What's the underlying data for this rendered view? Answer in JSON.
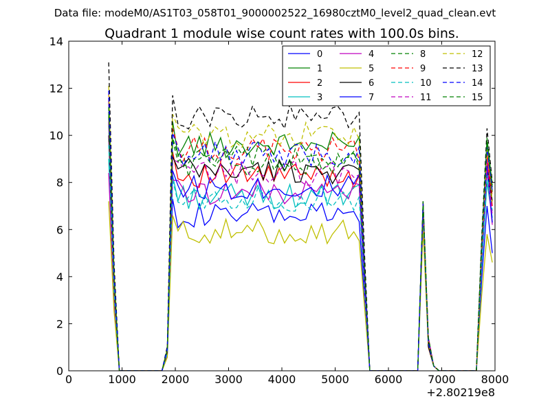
{
  "suptitle": "Data file: modeM0/AS1T03_058T01_9000002522_16980cztM0_level2_quad_clean.evt",
  "chart_data": {
    "type": "line",
    "title": "Quadrant 1 module wise count rates with 100.0s bins.",
    "xlabel": "",
    "ylabel": "",
    "x_offset_label": "+2.80219e8",
    "xlim": [
      0,
      8000
    ],
    "ylim": [
      0,
      14
    ],
    "xticks": [
      0,
      1000,
      2000,
      3000,
      4000,
      5000,
      6000,
      7000,
      8000
    ],
    "yticks": [
      0,
      2,
      4,
      6,
      8,
      10,
      12,
      14
    ],
    "grid": false,
    "legend_placement": "top-right",
    "legend_columns": 4,
    "segments": [
      {
        "x": [
          750,
          850,
          950,
          1050,
          1150,
          1250,
          1350,
          1450,
          1550,
          1650,
          1750,
          1850
        ]
      },
      {
        "x": [
          1850,
          1950,
          2050,
          2150,
          2250,
          2350,
          2450,
          2550,
          2650,
          2750,
          2850,
          2950,
          3050,
          3150,
          3250,
          3350,
          3450,
          3550,
          3650,
          3750,
          3850,
          3950,
          4050,
          4150,
          4250,
          4350,
          4450,
          4550,
          4650,
          4750,
          4850,
          4950,
          5050,
          5150,
          5250,
          5350,
          5450,
          5550,
          5650,
          5750,
          5850,
          5950,
          6050,
          6150,
          6250,
          6350,
          6450,
          6550,
          6650,
          6750,
          6850,
          6950,
          7050,
          7150,
          7250,
          7350,
          7450,
          7550,
          7650,
          7750,
          7850,
          7950
        ]
      }
    ],
    "series": [
      {
        "name": "0",
        "color": "#0000ff",
        "dash": "solid",
        "base": 6.6,
        "peak1": 10.5,
        "end1": 6.8,
        "peak2": 6.8,
        "peak3": 7.0,
        "end3": 5.0
      },
      {
        "name": "1",
        "color": "#008000",
        "dash": "solid",
        "base": 9.6,
        "peak1": 11.0,
        "end1": 10.1,
        "peak2": 7.0,
        "peak3": 9.7,
        "end3": 7.6
      },
      {
        "name": "2",
        "color": "#ff0000",
        "dash": "solid",
        "base": 8.3,
        "peak1": 11.5,
        "end1": 8.8,
        "peak2": 7.0,
        "peak3": 9.0,
        "end3": 7.0
      },
      {
        "name": "3",
        "color": "#00bfbf",
        "dash": "solid",
        "base": 7.4,
        "peak1": 9.0,
        "end1": 7.8,
        "peak2": 6.5,
        "peak3": 8.0,
        "end3": 6.5
      },
      {
        "name": "4",
        "color": "#bf00bf",
        "dash": "solid",
        "base": 7.6,
        "peak1": 8.4,
        "end1": 7.6,
        "peak2": 6.6,
        "peak3": 8.5,
        "end3": 6.2
      },
      {
        "name": "5",
        "color": "#bfbf00",
        "dash": "solid",
        "base": 5.9,
        "peak1": 7.2,
        "end1": 6.1,
        "peak2": 6.0,
        "peak3": 5.8,
        "end3": 4.6
      },
      {
        "name": "6",
        "color": "#000000",
        "dash": "solid",
        "base": 8.5,
        "peak1": 10.0,
        "end1": 8.6,
        "peak2": 7.1,
        "peak3": 8.7,
        "end3": 7.2
      },
      {
        "name": "7",
        "color": "#0000ff",
        "dash": "solid",
        "base": 7.8,
        "peak1": 11.6,
        "end1": 8.0,
        "peak2": 6.9,
        "peak3": 8.8,
        "end3": 6.3
      },
      {
        "name": "8",
        "color": "#008000",
        "dash": "dashed",
        "base": 8.8,
        "peak1": 10.8,
        "end1": 9.3,
        "peak2": 7.2,
        "peak3": 9.9,
        "end3": 7.8
      },
      {
        "name": "9",
        "color": "#ff0000",
        "dash": "dashed",
        "base": 9.4,
        "peak1": 11.8,
        "end1": 9.8,
        "peak2": 7.1,
        "peak3": 9.2,
        "end3": 7.4
      },
      {
        "name": "10",
        "color": "#00bfbf",
        "dash": "dashed",
        "base": 7.3,
        "peak1": 9.6,
        "end1": 7.6,
        "peak2": 6.7,
        "peak3": 8.3,
        "end3": 6.8
      },
      {
        "name": "11",
        "color": "#bf00bf",
        "dash": "dashed",
        "base": 8.4,
        "peak1": 10.6,
        "end1": 8.5,
        "peak2": 6.8,
        "peak3": 8.9,
        "end3": 6.6
      },
      {
        "name": "12",
        "color": "#bfbf00",
        "dash": "dashed",
        "base": 10.0,
        "peak1": 12.1,
        "end1": 10.4,
        "peak2": 7.0,
        "peak3": 9.4,
        "end3": 7.2
      },
      {
        "name": "13",
        "color": "#000000",
        "dash": "dashed",
        "base": 10.8,
        "peak1": 13.1,
        "end1": 11.2,
        "peak2": 7.2,
        "peak3": 10.3,
        "end3": 8.0
      },
      {
        "name": "14",
        "color": "#0000ff",
        "dash": "dashed",
        "base": 9.2,
        "peak1": 11.9,
        "end1": 9.6,
        "peak2": 7.1,
        "peak3": 9.5,
        "end3": 7.6
      },
      {
        "name": "15",
        "color": "#008000",
        "dash": "dashed",
        "base": 9.0,
        "peak1": 11.2,
        "end1": 9.4,
        "peak2": 7.2,
        "peak3": 9.8,
        "end3": 7.9
      }
    ]
  }
}
